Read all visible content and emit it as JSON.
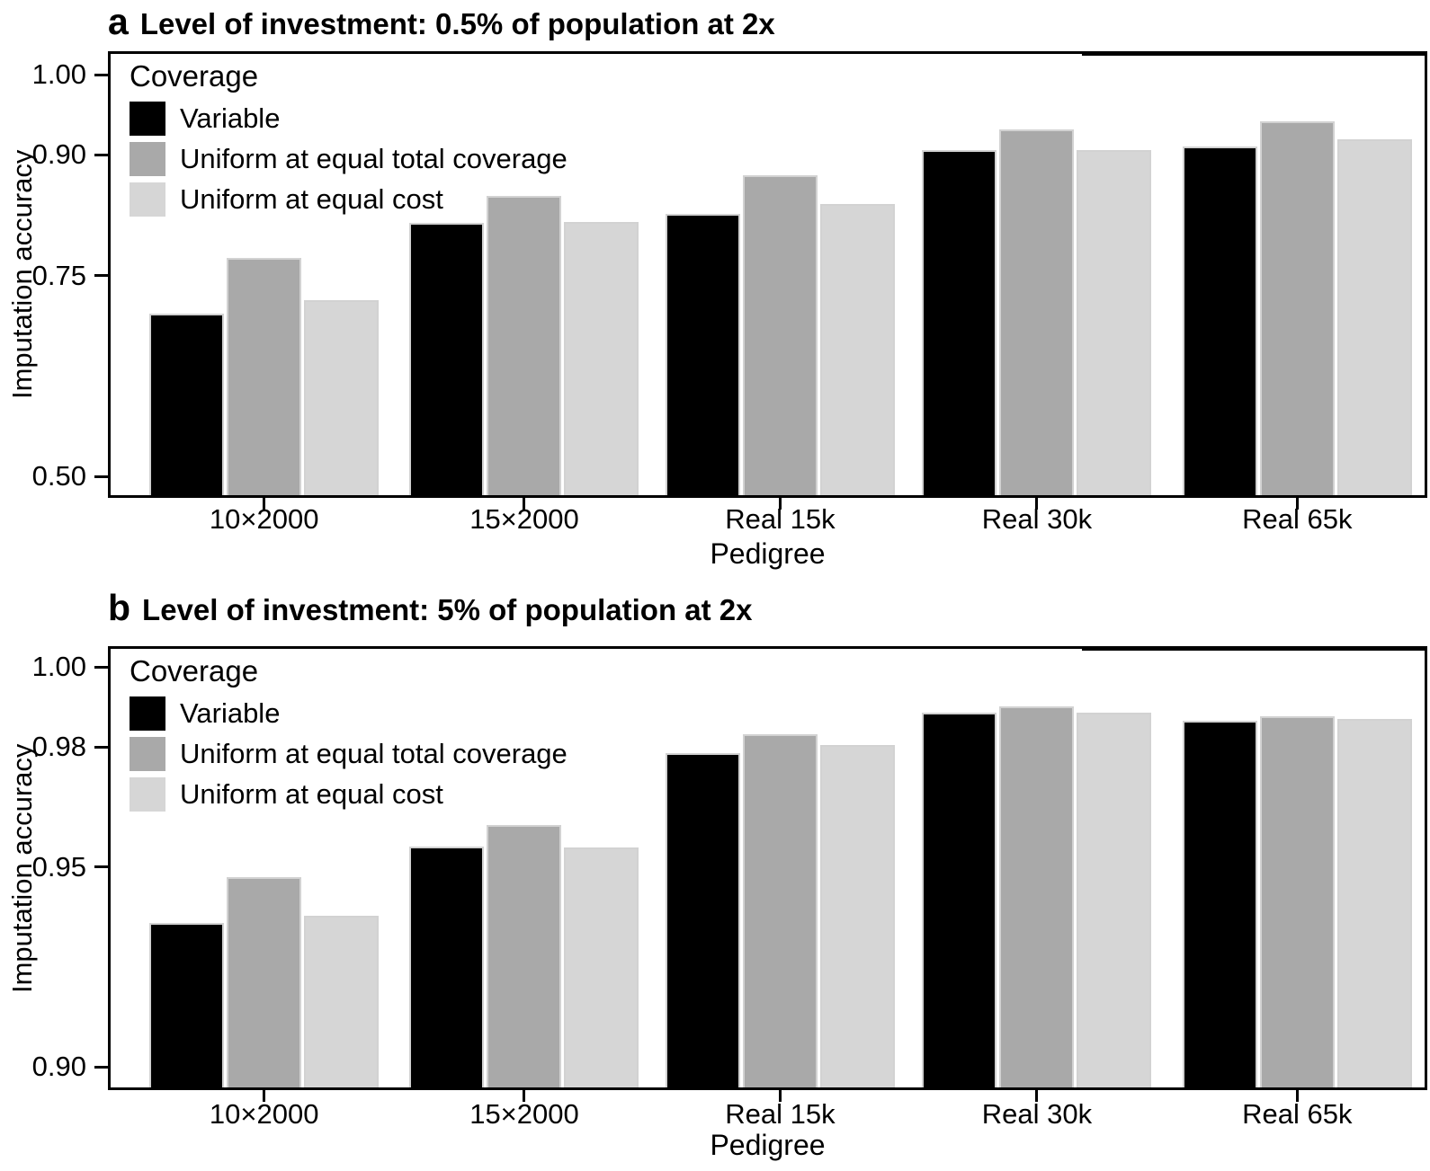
{
  "figure": {
    "background": "#ffffff",
    "text_color": "#000000"
  },
  "chart_data": [
    {
      "panel": "a",
      "type": "bar",
      "title": "Level of investment: 0.5% of population at 2x",
      "xlabel": "Pedigree",
      "ylabel": "Imputation accuracy",
      "categories": [
        "10×2000",
        "15×2000",
        "Real 15k",
        "Real 30k",
        "Real 65k"
      ],
      "series": [
        {
          "name": "Variable",
          "color": "#000000",
          "values": [
            0.703,
            0.816,
            0.827,
            0.906,
            0.911
          ]
        },
        {
          "name": "Uniform at equal total coverage",
          "color": "#a9a9a9",
          "values": [
            0.772,
            0.849,
            0.875,
            0.932,
            0.942
          ]
        },
        {
          "name": "Uniform at equal cost",
          "color": "#d6d6d6",
          "values": [
            0.719,
            0.817,
            0.839,
            0.906,
            0.92
          ]
        }
      ],
      "yticks": {
        "labels": [
          "1.00",
          "0.90",
          "0.75",
          "0.50"
        ],
        "values": [
          1.0,
          0.9,
          0.75,
          0.5
        ]
      },
      "ylim": [
        0.4732,
        1.0291
      ],
      "legend": {
        "title": "Coverage",
        "position": "top-left-inside"
      },
      "grid": false
    },
    {
      "panel": "b",
      "type": "bar",
      "title": "Level of investment: 5% of population at 2x",
      "xlabel": "Pedigree",
      "ylabel": "Imputation accuracy",
      "categories": [
        "10×2000",
        "15×2000",
        "Real 15k",
        "Real 30k",
        "Real 65k"
      ],
      "series": [
        {
          "name": "Variable",
          "color": "#000000",
          "values": [
            0.936,
            0.955,
            0.9785,
            0.9886,
            0.9866
          ]
        },
        {
          "name": "Uniform at equal total coverage",
          "color": "#a9a9a9",
          "values": [
            0.9474,
            0.9605,
            0.9832,
            0.9902,
            0.9877
          ]
        },
        {
          "name": "Uniform at equal cost",
          "color": "#d6d6d6",
          "values": [
            0.9378,
            0.9548,
            0.9804,
            0.9886,
            0.9869
          ]
        }
      ],
      "yticks": {
        "labels": [
          "1.00",
          "0.98",
          "0.95",
          "0.90"
        ],
        "values": [
          1.0,
          0.98,
          0.95,
          0.9
        ]
      },
      "ylim": [
        0.8942,
        1.0052
      ],
      "legend": {
        "title": "Coverage",
        "position": "top-left-inside"
      },
      "grid": false
    }
  ]
}
